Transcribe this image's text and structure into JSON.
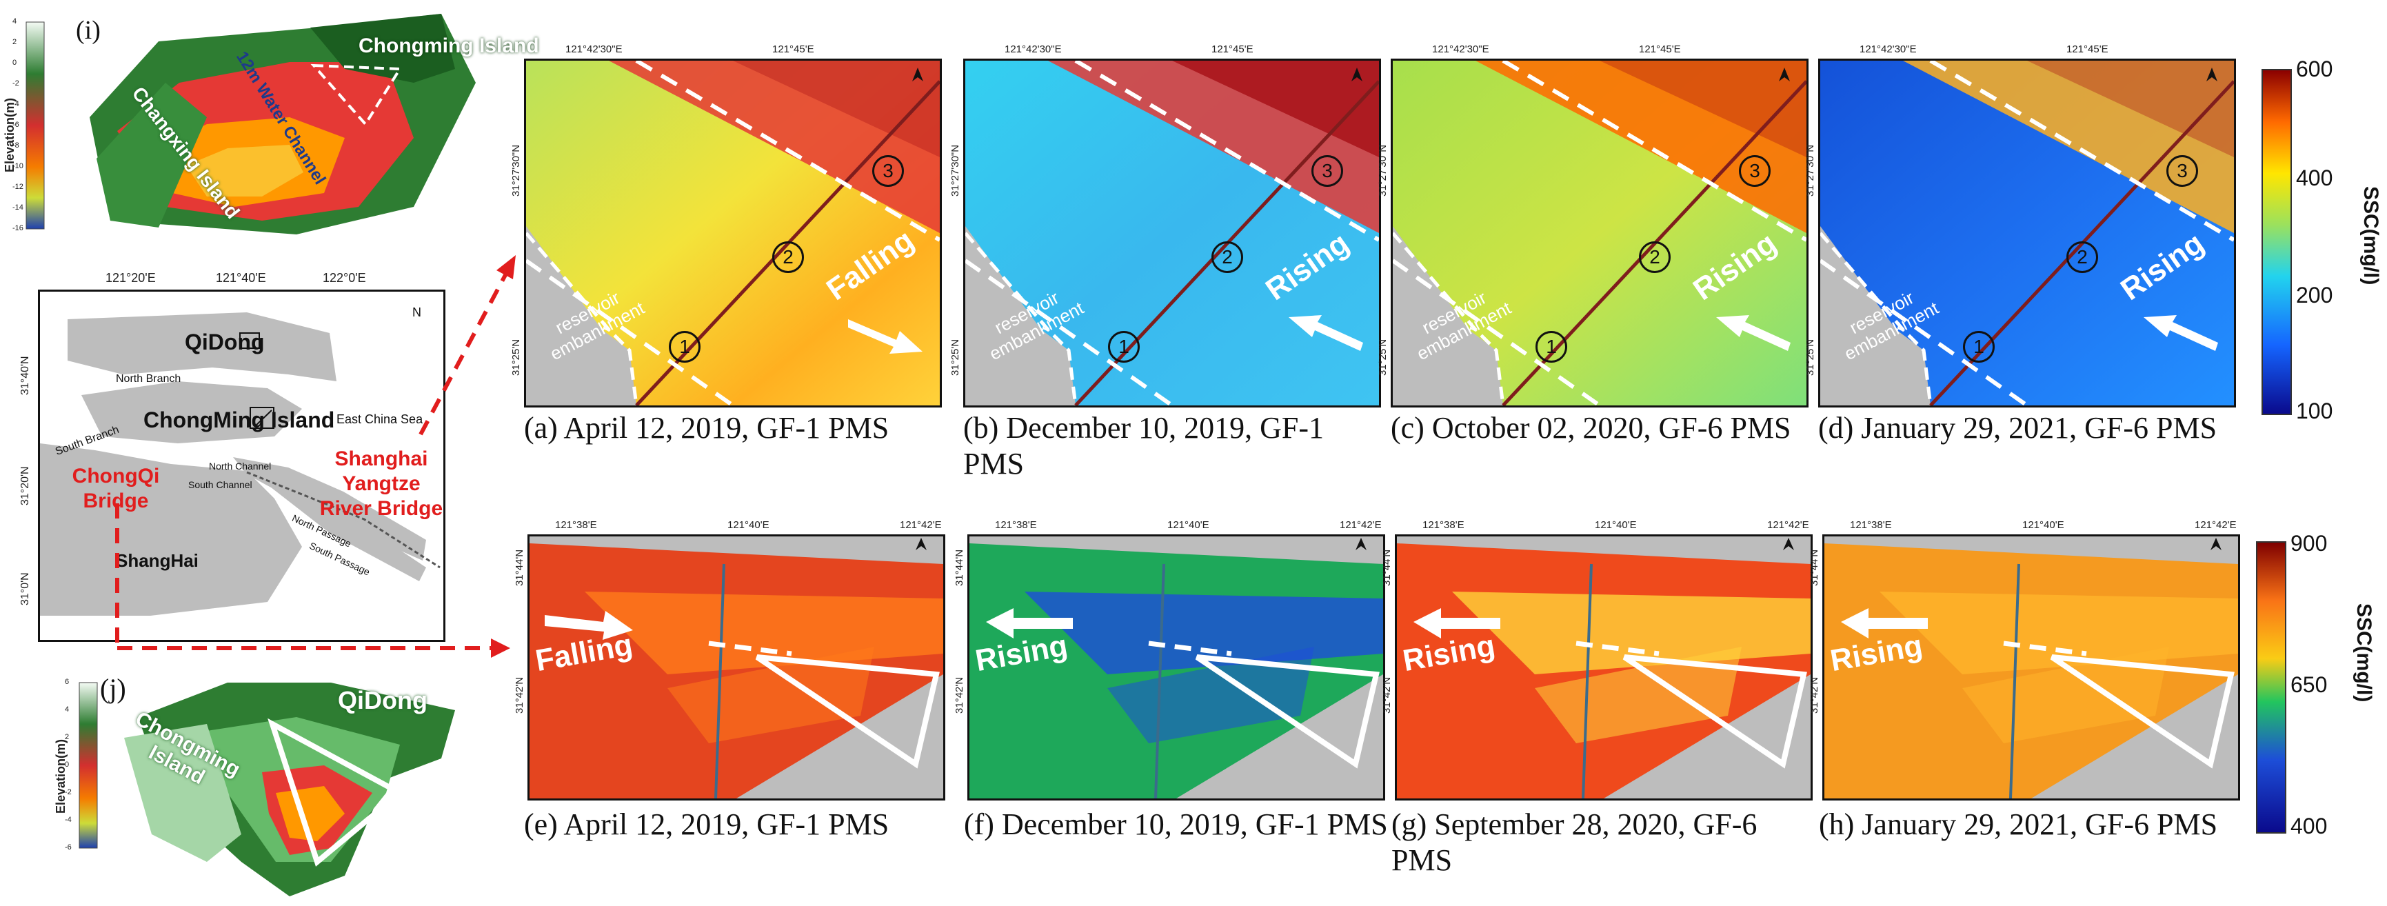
{
  "dem_i": {
    "label": "(i)",
    "axis_title": "Elevation(m)",
    "ticks": [
      "4",
      "2",
      "0",
      "-2",
      "-4",
      "-6",
      "-8",
      "-10",
      "-12",
      "-14",
      "-16"
    ],
    "places": [
      "Chongming Island",
      "12m Water Channel",
      "Changxing Island"
    ]
  },
  "dem_j": {
    "label": "(j)",
    "axis_title": "Elevation(m)",
    "ticks": [
      "6",
      "4",
      "2",
      "0",
      "-2",
      "-4",
      "-6"
    ],
    "places": [
      "QiDong",
      "Chongming Island"
    ]
  },
  "location_map": {
    "lon_ticks": [
      "121°20'E",
      "121°40'E",
      "122°0'E"
    ],
    "lat_ticks": [
      "31°40'N",
      "31°20'N",
      "31°0'N"
    ],
    "places": {
      "qidong": "QiDong",
      "north_branch": "North Branch",
      "chongming": "ChongMing Island",
      "south_branch": "South Branch",
      "east_china_sea": "East China Sea",
      "north_channel": "North Channel",
      "south_channel": "South Channel",
      "north_passage": "North Passage",
      "south_passage": "South Passage",
      "shanghai": "ShangHai"
    },
    "bridge_chongqi": "ChongQi Bridge",
    "bridge_shanghai_yangtze": "Shanghai Yangtze River Bridge",
    "north_symbol": "N"
  },
  "top_row": {
    "lon_ticks": [
      "121°42'30\"E",
      "121°45'E"
    ],
    "lat_ticks": [
      "31°27'30\"N",
      "31°25'N"
    ],
    "embankment": "reservoir embankment",
    "markers": [
      "1",
      "2",
      "3"
    ],
    "panels": [
      {
        "caption": "(a) April 12, 2019, GF-1 PMS",
        "flow": "Falling"
      },
      {
        "caption": "(b) December 10, 2019, GF-1 PMS",
        "flow": "Rising"
      },
      {
        "caption": "(c) October 02, 2020, GF-6 PMS",
        "flow": "Rising"
      },
      {
        "caption": "(d) January 29, 2021, GF-6 PMS",
        "flow": "Rising"
      }
    ],
    "colorbar": {
      "title": "SSC(mg/l)",
      "ticks": [
        "600",
        "400",
        "200",
        "100"
      ]
    }
  },
  "bottom_row": {
    "lon_ticks": [
      "121°38'E",
      "121°40'E",
      "121°42'E"
    ],
    "lat_ticks": [
      "31°44'N",
      "31°42'N"
    ],
    "panels": [
      {
        "caption": "(e) April 12, 2019, GF-1 PMS",
        "flow": "Falling"
      },
      {
        "caption": "(f) December 10, 2019, GF-1 PMS",
        "flow": "Rising"
      },
      {
        "caption": "(g) September 28, 2020, GF-6 PMS",
        "flow": "Rising"
      },
      {
        "caption": "(h) January 29, 2021, GF-6 PMS",
        "flow": "Rising"
      }
    ],
    "colorbar": {
      "title": "SSC(mg/l)",
      "ticks": [
        "900",
        "650",
        "400"
      ]
    }
  },
  "colors": {
    "sediment_high": "#b71c1c",
    "sediment_mid": "#ffeb3b",
    "sediment_low": "#0d47a1",
    "land": "#c8c8c8",
    "annotation_red": "#e11d1d"
  }
}
